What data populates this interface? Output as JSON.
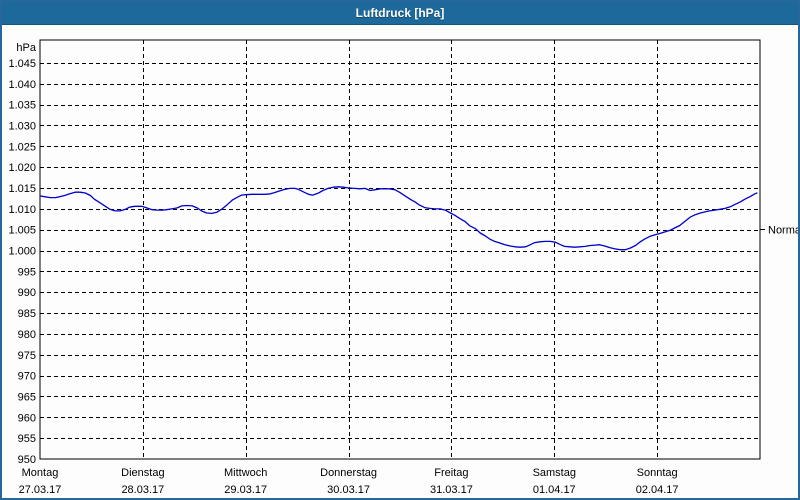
{
  "window": {
    "title": "Luftdruck [hPa]",
    "titlebar_color": "#1E699B",
    "border_color": "#26689B",
    "background": "#fcfdfc"
  },
  "chart_data": {
    "type": "line",
    "title": "Luftdruck [hPa]",
    "ylabel": "hPa",
    "ylim": [
      950,
      1050.5
    ],
    "grid": true,
    "grid_style": "dashed-black",
    "line_color": "#0000CC",
    "y_ticks": [
      {
        "value": 1045,
        "label": "1.045"
      },
      {
        "value": 1040,
        "label": "1.040"
      },
      {
        "value": 1035,
        "label": "1.035"
      },
      {
        "value": 1030,
        "label": "1.030"
      },
      {
        "value": 1025,
        "label": "1.025"
      },
      {
        "value": 1020,
        "label": "1.020"
      },
      {
        "value": 1015,
        "label": "1.015"
      },
      {
        "value": 1010,
        "label": "1.010"
      },
      {
        "value": 1005,
        "label": "1.005"
      },
      {
        "value": 1000,
        "label": "1.000"
      },
      {
        "value": 995,
        "label": "995"
      },
      {
        "value": 990,
        "label": "990"
      },
      {
        "value": 985,
        "label": "985"
      },
      {
        "value": 980,
        "label": "980"
      },
      {
        "value": 975,
        "label": "975"
      },
      {
        "value": 970,
        "label": "970"
      },
      {
        "value": 965,
        "label": "965"
      },
      {
        "value": 960,
        "label": "960"
      },
      {
        "value": 955,
        "label": "955"
      },
      {
        "value": 950,
        "label": "950"
      }
    ],
    "categories": [
      {
        "day": "Montag",
        "date": "27.03.17"
      },
      {
        "day": "Dienstag",
        "date": "28.03.17"
      },
      {
        "day": "Mittwoch",
        "date": "29.03.17"
      },
      {
        "day": "Donnerstag",
        "date": "30.03.17"
      },
      {
        "day": "Freitag",
        "date": "31.03.17"
      },
      {
        "day": "Samstag",
        "date": "01.04.17"
      },
      {
        "day": "Sonntag",
        "date": "02.04.17"
      }
    ],
    "annotation": {
      "label": "Normal",
      "value": 1005
    },
    "legend_position": "none",
    "series": [
      {
        "name": "Luftdruck",
        "color": "#0000CC",
        "points_day_hpa": [
          [
            0.0,
            1013.1
          ],
          [
            0.05,
            1012.9
          ],
          [
            0.1,
            1012.7
          ],
          [
            0.15,
            1012.7
          ],
          [
            0.19,
            1012.9
          ],
          [
            0.24,
            1013.2
          ],
          [
            0.29,
            1013.6
          ],
          [
            0.34,
            1014.0
          ],
          [
            0.39,
            1014.0
          ],
          [
            0.44,
            1013.8
          ],
          [
            0.49,
            1013.2
          ],
          [
            0.53,
            1012.3
          ],
          [
            0.58,
            1011.5
          ],
          [
            0.63,
            1010.7
          ],
          [
            0.68,
            1009.9
          ],
          [
            0.73,
            1009.5
          ],
          [
            0.78,
            1009.5
          ],
          [
            0.83,
            1009.9
          ],
          [
            0.87,
            1010.4
          ],
          [
            0.92,
            1010.6
          ],
          [
            0.99,
            1010.6
          ],
          [
            1.04,
            1010.2
          ],
          [
            1.09,
            1009.8
          ],
          [
            1.14,
            1009.7
          ],
          [
            1.19,
            1009.7
          ],
          [
            1.23,
            1009.8
          ],
          [
            1.28,
            1010.0
          ],
          [
            1.33,
            1010.2
          ],
          [
            1.38,
            1010.7
          ],
          [
            1.43,
            1010.8
          ],
          [
            1.48,
            1010.7
          ],
          [
            1.53,
            1010.2
          ],
          [
            1.57,
            1009.5
          ],
          [
            1.62,
            1009.0
          ],
          [
            1.67,
            1008.9
          ],
          [
            1.72,
            1009.2
          ],
          [
            1.77,
            1010.0
          ],
          [
            1.82,
            1011.0
          ],
          [
            1.87,
            1012.1
          ],
          [
            1.92,
            1012.8
          ],
          [
            1.96,
            1013.3
          ],
          [
            2.0,
            1013.4
          ],
          [
            2.06,
            1013.5
          ],
          [
            2.12,
            1013.5
          ],
          [
            2.19,
            1013.5
          ],
          [
            2.24,
            1013.6
          ],
          [
            2.28,
            1013.9
          ],
          [
            2.33,
            1014.3
          ],
          [
            2.38,
            1014.7
          ],
          [
            2.43,
            1014.9
          ],
          [
            2.48,
            1014.9
          ],
          [
            2.51,
            1014.7
          ],
          [
            2.56,
            1014.1
          ],
          [
            2.61,
            1013.5
          ],
          [
            2.65,
            1013.3
          ],
          [
            2.7,
            1013.7
          ],
          [
            2.75,
            1014.4
          ],
          [
            2.8,
            1014.9
          ],
          [
            2.85,
            1015.2
          ],
          [
            2.9,
            1015.3
          ],
          [
            2.95,
            1015.2
          ],
          [
            3.0,
            1015.0
          ],
          [
            3.06,
            1014.9
          ],
          [
            3.11,
            1014.8
          ],
          [
            3.16,
            1014.9
          ],
          [
            3.21,
            1014.4
          ],
          [
            3.26,
            1014.6
          ],
          [
            3.31,
            1014.8
          ],
          [
            3.35,
            1014.8
          ],
          [
            3.4,
            1014.8
          ],
          [
            3.45,
            1014.6
          ],
          [
            3.5,
            1013.9
          ],
          [
            3.55,
            1013.1
          ],
          [
            3.6,
            1012.3
          ],
          [
            3.65,
            1011.6
          ],
          [
            3.69,
            1010.9
          ],
          [
            3.74,
            1010.3
          ],
          [
            3.79,
            1010.1
          ],
          [
            3.84,
            1010.0
          ],
          [
            3.89,
            1010.0
          ],
          [
            3.94,
            1009.7
          ],
          [
            3.99,
            1009.0
          ],
          [
            4.03,
            1008.5
          ],
          [
            4.08,
            1007.7
          ],
          [
            4.13,
            1007.0
          ],
          [
            4.18,
            1005.9
          ],
          [
            4.23,
            1005.3
          ],
          [
            4.28,
            1004.2
          ],
          [
            4.33,
            1003.5
          ],
          [
            4.37,
            1002.8
          ],
          [
            4.42,
            1002.2
          ],
          [
            4.47,
            1001.8
          ],
          [
            4.52,
            1001.4
          ],
          [
            4.57,
            1001.1
          ],
          [
            4.62,
            1000.9
          ],
          [
            4.67,
            1000.8
          ],
          [
            4.72,
            1000.9
          ],
          [
            4.76,
            1001.3
          ],
          [
            4.81,
            1001.9
          ],
          [
            4.86,
            1002.1
          ],
          [
            4.91,
            1002.2
          ],
          [
            4.96,
            1002.2
          ],
          [
            5.01,
            1002.0
          ],
          [
            5.06,
            1001.4
          ],
          [
            5.1,
            1001.0
          ],
          [
            5.15,
            1000.9
          ],
          [
            5.2,
            1000.8
          ],
          [
            5.25,
            1000.9
          ],
          [
            5.3,
            1001.0
          ],
          [
            5.35,
            1001.2
          ],
          [
            5.4,
            1001.3
          ],
          [
            5.44,
            1001.4
          ],
          [
            5.49,
            1001.1
          ],
          [
            5.54,
            1000.7
          ],
          [
            5.59,
            1000.4
          ],
          [
            5.64,
            1000.2
          ],
          [
            5.69,
            1000.2
          ],
          [
            5.74,
            1000.6
          ],
          [
            5.79,
            1001.2
          ],
          [
            5.83,
            1002.0
          ],
          [
            5.88,
            1002.8
          ],
          [
            5.93,
            1003.4
          ],
          [
            5.98,
            1003.8
          ],
          [
            6.03,
            1004.1
          ],
          [
            6.08,
            1004.5
          ],
          [
            6.13,
            1004.9
          ],
          [
            6.17,
            1005.4
          ],
          [
            6.22,
            1006.0
          ],
          [
            6.27,
            1007.0
          ],
          [
            6.32,
            1008.0
          ],
          [
            6.37,
            1008.6
          ],
          [
            6.42,
            1009.0
          ],
          [
            6.47,
            1009.3
          ],
          [
            6.51,
            1009.5
          ],
          [
            6.56,
            1009.7
          ],
          [
            6.61,
            1009.9
          ],
          [
            6.66,
            1010.1
          ],
          [
            6.71,
            1010.5
          ],
          [
            6.76,
            1011.1
          ],
          [
            6.81,
            1011.7
          ],
          [
            6.85,
            1012.3
          ],
          [
            6.9,
            1012.9
          ],
          [
            6.95,
            1013.6
          ],
          [
            6.97,
            1013.8
          ]
        ]
      }
    ]
  }
}
